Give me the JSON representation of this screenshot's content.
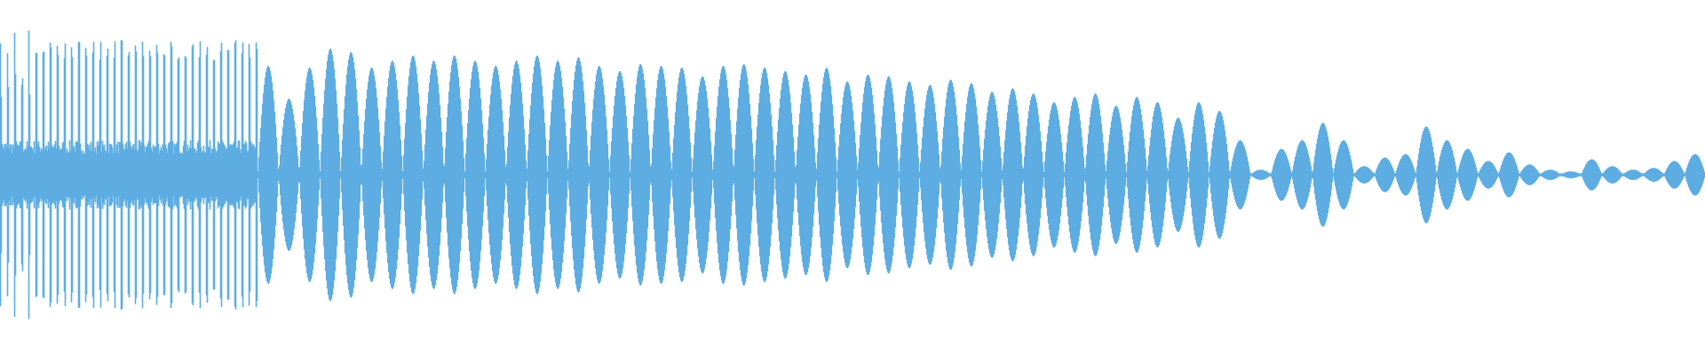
{
  "waveform": {
    "color": "#5DADE2",
    "background": "#FFFFFF",
    "attack_spike_amplitude": 0.78,
    "lobe_amplitudes": [
      0.63,
      0.44,
      0.62,
      0.73,
      0.71,
      0.62,
      0.66,
      0.69,
      0.66,
      0.69,
      0.66,
      0.63,
      0.66,
      0.69,
      0.66,
      0.68,
      0.63,
      0.6,
      0.64,
      0.63,
      0.62,
      0.57,
      0.63,
      0.64,
      0.62,
      0.6,
      0.58,
      0.62,
      0.54,
      0.58,
      0.57,
      0.54,
      0.52,
      0.55,
      0.53,
      0.48,
      0.5,
      0.47,
      0.42,
      0.45,
      0.47,
      0.4,
      0.45,
      0.42,
      0.33,
      0.42,
      0.37,
      0.2,
      0.03,
      0.15,
      0.2,
      0.3,
      0.2,
      0.05,
      0.1,
      0.12,
      0.28,
      0.2,
      0.15,
      0.08,
      0.13,
      0.06,
      0.03,
      0.02,
      0.09,
      0.05,
      0.03,
      0.04,
      0.08,
      0.12
    ]
  }
}
